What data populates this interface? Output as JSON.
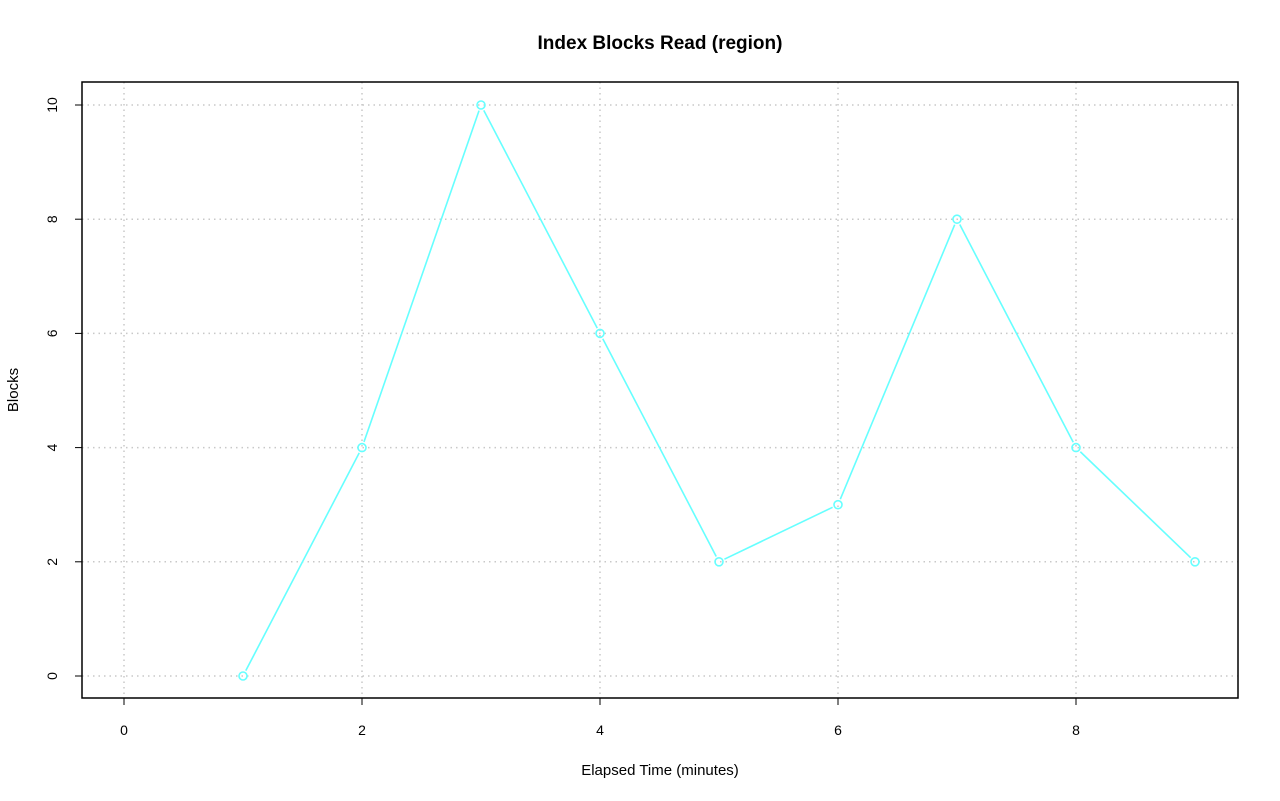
{
  "chart_data": {
    "type": "line",
    "title": "Index Blocks Read (region)",
    "xlabel": "Elapsed Time (minutes)",
    "ylabel": "Blocks",
    "xlim": [
      0,
      9
    ],
    "ylim": [
      0,
      10
    ],
    "x_ticks": [
      "0",
      "2",
      "4",
      "6",
      "8"
    ],
    "y_ticks": [
      "0",
      "2",
      "4",
      "6",
      "8",
      "10"
    ],
    "grid": true,
    "grid_style": "dotted",
    "series": [
      {
        "x": [
          1,
          2,
          3,
          4,
          5,
          6,
          7,
          8,
          9
        ],
        "values": [
          0,
          4,
          10,
          6,
          2,
          3,
          8,
          4,
          2
        ],
        "color": "#66ffff",
        "marker": "open-circle"
      }
    ]
  }
}
